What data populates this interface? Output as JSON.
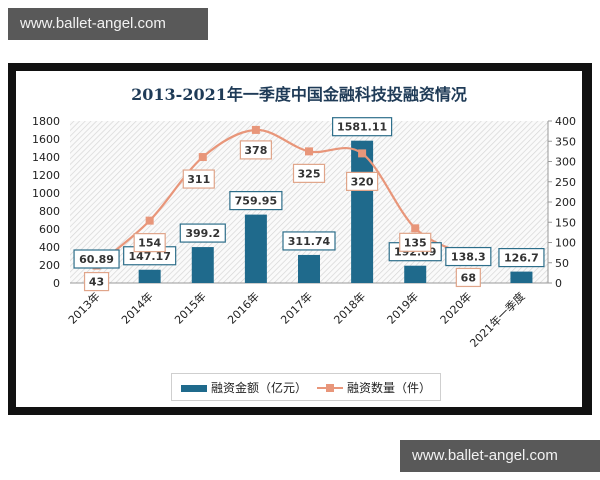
{
  "watermarks": {
    "top": "www.ballet-angel.com",
    "bottom": "www.ballet-angel.com"
  },
  "colors": {
    "bar": "#1f6a8c",
    "line": "#e8967a",
    "bar_label_border": "#2d6e8a",
    "line_label_border": "#e0a58a",
    "title": "#1f3b57"
  },
  "chart_data": {
    "type": "bar+line",
    "title": "2013-2021年一季度中国金融科技投融资情况",
    "categories": [
      "2013年",
      "2014年",
      "2015年",
      "2016年",
      "2017年",
      "2018年",
      "2019年",
      "2020年",
      "2021年一季度"
    ],
    "series": [
      {
        "name": "融资金额（亿元）",
        "type": "bar",
        "axis": "left",
        "values": [
          60.89,
          147.17,
          399.2,
          759.95,
          311.74,
          1581.11,
          192.09,
          138.3,
          126.7
        ]
      },
      {
        "name": "融资数量（件）",
        "type": "line",
        "axis": "right",
        "values": [
          43,
          154,
          311,
          378,
          325,
          320,
          135,
          68,
          null
        ]
      }
    ],
    "y_left": {
      "ylim": [
        0,
        1800
      ],
      "ticks": [
        "0",
        "200",
        "400",
        "600",
        "800",
        "1000",
        "1200",
        "1400",
        "1600",
        "1800"
      ]
    },
    "y_right": {
      "ylim": [
        0,
        400
      ],
      "ticks": [
        "0",
        "50",
        "100",
        "150",
        "200",
        "250",
        "300",
        "350",
        "400"
      ]
    },
    "legend": {
      "position": "bottom",
      "entries": [
        "融资金额（亿元）",
        "融资数量（件）"
      ]
    },
    "grid": false,
    "background": "diagonal-hatch"
  }
}
